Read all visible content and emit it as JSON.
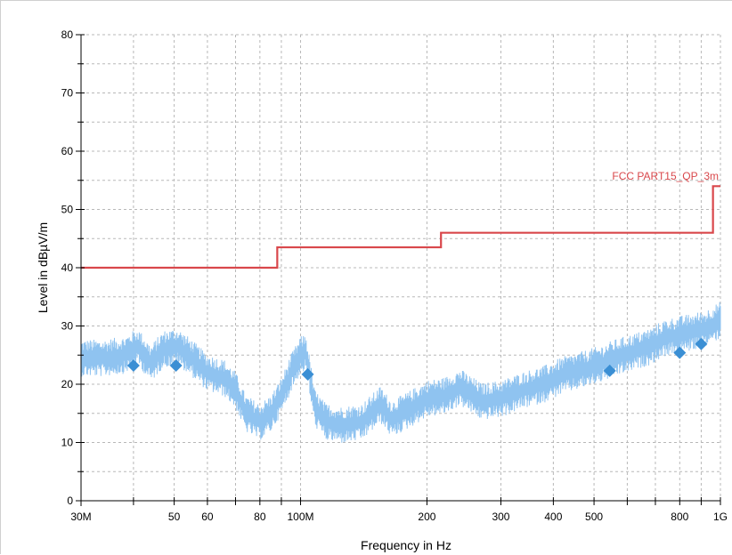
{
  "colors": {
    "limit": "#d9474b",
    "trace": "#8fc3f0",
    "marker": "#3b8fd4",
    "grid": "#b8b8b8"
  },
  "chart_data": {
    "type": "line",
    "title": "",
    "xlabel": "Frequency in Hz",
    "ylabel": "Level in dBµV/m",
    "x_scale": "log",
    "xlim": [
      30000000,
      1000000000
    ],
    "ylim": [
      0,
      80
    ],
    "grid": true,
    "x_ticks": [
      {
        "value": 30000000,
        "label": "30M"
      },
      {
        "value": 50000000,
        "label": "50"
      },
      {
        "value": 60000000,
        "label": "60"
      },
      {
        "value": 80000000,
        "label": "80"
      },
      {
        "value": 100000000,
        "label": "100M"
      },
      {
        "value": 200000000,
        "label": "200"
      },
      {
        "value": 300000000,
        "label": "300"
      },
      {
        "value": 400000000,
        "label": "400"
      },
      {
        "value": 500000000,
        "label": "500"
      },
      {
        "value": 800000000,
        "label": "800"
      },
      {
        "value": 1000000000,
        "label": "1G"
      }
    ],
    "x_grid_values": [
      30000000,
      40000000,
      50000000,
      60000000,
      70000000,
      80000000,
      90000000,
      100000000,
      200000000,
      300000000,
      400000000,
      500000000,
      600000000,
      700000000,
      800000000,
      900000000,
      1000000000
    ],
    "y_ticks": [
      0,
      10,
      20,
      30,
      40,
      50,
      60,
      70,
      80
    ],
    "limit_line": {
      "name": "FCC PART15_QP_3m",
      "steps": [
        {
          "x": [
            30000000,
            88000000
          ],
          "y": 40
        },
        {
          "x": [
            88000000,
            216000000
          ],
          "y": 43.5
        },
        {
          "x": [
            216000000,
            960000000
          ],
          "y": 46
        },
        {
          "x": [
            960000000,
            1000000000
          ],
          "y": 54
        }
      ]
    },
    "series": [
      {
        "type": "noisy-trace",
        "x": [
          30000000,
          34000000,
          38000000,
          41000000,
          44000000,
          47000000,
          51000000,
          55000000,
          60000000,
          66000000,
          70000000,
          74000000,
          80000000,
          85000000,
          90000000,
          95000000,
          100000000,
          103000000,
          108000000,
          115000000,
          125000000,
          140000000,
          155000000,
          165000000,
          180000000,
          200000000,
          220000000,
          240000000,
          270000000,
          300000000,
          340000000,
          380000000,
          420000000,
          470000000,
          520000000,
          560000000,
          620000000,
          680000000,
          740000000,
          800000000,
          860000000,
          920000000,
          970000000,
          1000000000
        ],
        "values": [
          24.5,
          24.5,
          25,
          26.5,
          23.5,
          26,
          26.5,
          24.5,
          22,
          21,
          19,
          15,
          13.5,
          15,
          18,
          22,
          25,
          25.5,
          16,
          13.5,
          13,
          13.5,
          16.5,
          14,
          15.5,
          17.5,
          18,
          19.5,
          17,
          17.5,
          19,
          20,
          21.5,
          22.5,
          23.5,
          24.5,
          25.5,
          26.5,
          28,
          28.5,
          29,
          29.5,
          30.5,
          31
        ]
      },
      {
        "type": "markers",
        "x": [
          40000000,
          50500000,
          104000000,
          545000000,
          800000000,
          900000000
        ],
        "values": [
          23.2,
          23.2,
          21.7,
          22.3,
          25.4,
          26.9
        ]
      }
    ]
  }
}
